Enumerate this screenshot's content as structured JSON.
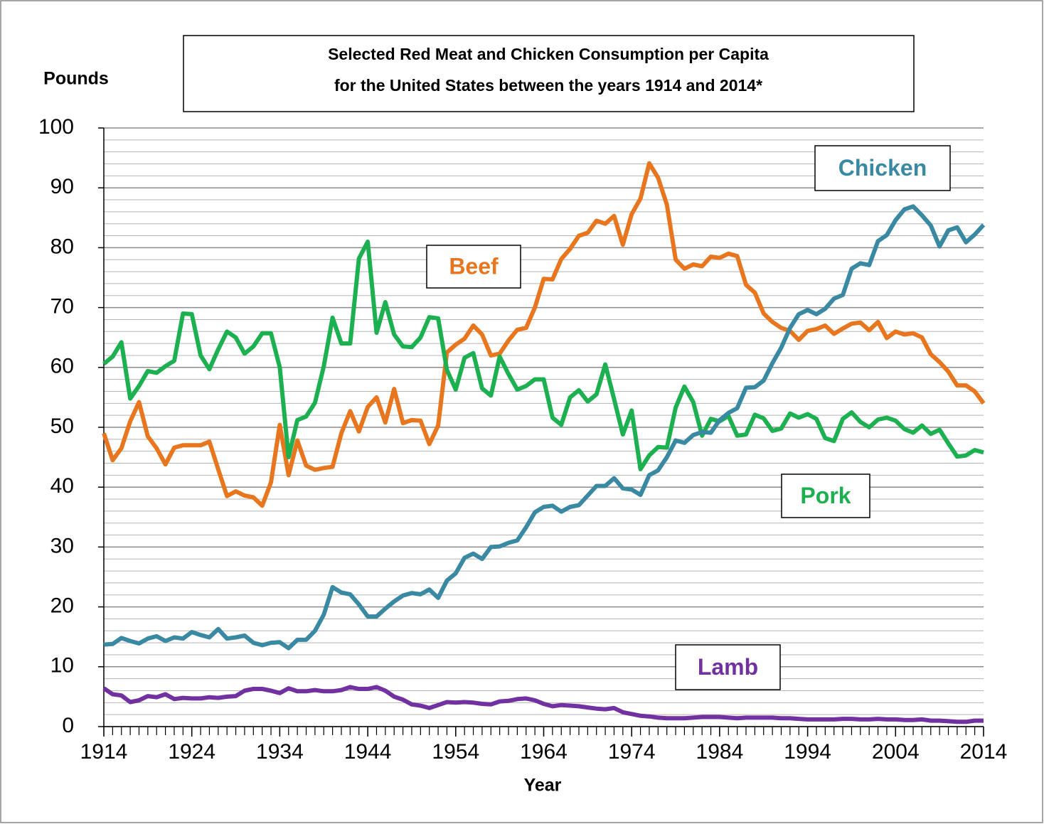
{
  "chart_data": {
    "type": "line",
    "title_lines": [
      "Selected Red Meat and Chicken Consumption per Capita",
      "for the United States between the years 1914 and 2014*"
    ],
    "ylabel": "Pounds",
    "xlabel": "Year",
    "x": [
      1914,
      1915,
      1916,
      1917,
      1918,
      1919,
      1920,
      1921,
      1922,
      1923,
      1924,
      1925,
      1926,
      1927,
      1928,
      1929,
      1930,
      1931,
      1932,
      1933,
      1934,
      1935,
      1936,
      1937,
      1938,
      1939,
      1940,
      1941,
      1942,
      1943,
      1944,
      1945,
      1946,
      1947,
      1948,
      1949,
      1950,
      1951,
      1952,
      1953,
      1954,
      1955,
      1956,
      1957,
      1958,
      1959,
      1960,
      1961,
      1962,
      1963,
      1964,
      1965,
      1966,
      1967,
      1968,
      1969,
      1970,
      1971,
      1972,
      1973,
      1974,
      1975,
      1976,
      1977,
      1978,
      1979,
      1980,
      1981,
      1982,
      1983,
      1984,
      1985,
      1986,
      1987,
      1988,
      1989,
      1990,
      1991,
      1992,
      1993,
      1994,
      1995,
      1996,
      1997,
      1998,
      1999,
      2000,
      2001,
      2002,
      2003,
      2004,
      2005,
      2006,
      2007,
      2008,
      2009,
      2010,
      2011,
      2012,
      2013,
      2014
    ],
    "series": [
      {
        "name": "Beef",
        "color": "#e8761e",
        "values": [
          49,
          44.5,
          46.5,
          51,
          54.2,
          48.5,
          46.5,
          43.8,
          46.6,
          47,
          47,
          47,
          47.6,
          43,
          38.5,
          39.3,
          38.6,
          38.3,
          36.9,
          40.8,
          50.4,
          42,
          47.8,
          43.6,
          42.9,
          43.2,
          43.4,
          49,
          52.7,
          49.3,
          53.4,
          55,
          50.8,
          56.4,
          50.7,
          51.2,
          51.1,
          47.2,
          50.3,
          62.5,
          63.8,
          64.8,
          67,
          65.5,
          62,
          62.3,
          64.5,
          66.3,
          66.6,
          70,
          74.8,
          74.7,
          78.1,
          79.8,
          82,
          82.5,
          84.5,
          84,
          85.3,
          80.5,
          85.6,
          88.2,
          94.1,
          91.7,
          87.2,
          78,
          76.5,
          77.2,
          76.9,
          78.5,
          78.3,
          79,
          78.6,
          73.8,
          72.5,
          69,
          67.6,
          66.6,
          66.1,
          64.6,
          66.1,
          66.4,
          67,
          65.6,
          66.5,
          67.3,
          67.5,
          66.2,
          67.6,
          64.9,
          66,
          65.5,
          65.7,
          65,
          62.2,
          60.9,
          59.3,
          57,
          57,
          56,
          54
        ]
      },
      {
        "name": "Pork",
        "color": "#1cb050",
        "values": [
          60.6,
          61.8,
          64.2,
          54.8,
          56.9,
          59.4,
          59.1,
          60.2,
          61.1,
          69,
          68.9,
          62,
          59.7,
          63,
          66,
          65,
          62.3,
          63.5,
          65.7,
          65.7,
          60,
          45,
          51.2,
          51.8,
          54.1,
          60.2,
          68.3,
          64,
          64,
          78.2,
          81,
          65.8,
          70.9,
          65.5,
          63.5,
          63.4,
          65,
          68.4,
          68.2,
          59.6,
          56.3,
          61.6,
          62.4,
          56.5,
          55.3,
          61.8,
          58.9,
          56.3,
          56.9,
          58,
          58,
          51.6,
          50.4,
          55,
          56.2,
          54.3,
          55.5,
          60.5,
          54.7,
          48.8,
          52.8,
          43,
          45.3,
          46.7,
          46.6,
          53.3,
          56.8,
          54.2,
          48.6,
          51.4,
          51,
          51.9,
          48.6,
          48.8,
          52.1,
          51.5,
          49.4,
          49.8,
          52.3,
          51.6,
          52.2,
          51.4,
          48.2,
          47.7,
          51.4,
          52.5,
          50.9,
          50,
          51.3,
          51.6,
          51.1,
          49.7,
          49.1,
          50.3,
          48.9,
          49.6,
          47.3,
          45.1,
          45.3,
          46.2,
          45.8
        ]
      },
      {
        "name": "Chicken",
        "color": "#3a89a3",
        "values": [
          13.7,
          13.8,
          14.8,
          14.3,
          13.9,
          14.7,
          15.1,
          14.3,
          14.9,
          14.7,
          15.8,
          15.3,
          14.9,
          16.3,
          14.7,
          14.9,
          15.2,
          14,
          13.6,
          14,
          14.1,
          13.1,
          14.5,
          14.5,
          16,
          18.7,
          23.3,
          22.4,
          22.1,
          20.4,
          18.4,
          18.4,
          19.7,
          20.9,
          21.9,
          22.3,
          22.1,
          22.9,
          21.5,
          24.4,
          25.6,
          28.2,
          28.9,
          28,
          30,
          30.1,
          30.7,
          31.1,
          33.3,
          35.8,
          36.7,
          36.9,
          35.9,
          36.7,
          37,
          38.6,
          40.2,
          40.2,
          41.5,
          39.8,
          39.6,
          38.7,
          42,
          42.8,
          45,
          47.8,
          47.4,
          48.7,
          49.2,
          49.1,
          51.2,
          52.4,
          53.2,
          56.6,
          56.7,
          57.8,
          60.7,
          63.3,
          66.6,
          68.9,
          69.6,
          68.9,
          69.8,
          71.5,
          72.1,
          76.5,
          77.4,
          77.1,
          81.1,
          82.1,
          84.6,
          86.4,
          86.9,
          85.4,
          83.7,
          80.2,
          82.9,
          83.4,
          80.9,
          82.2,
          83.8
        ]
      },
      {
        "name": "Lamb",
        "color": "#7231a0",
        "values": [
          6.4,
          5.4,
          5.2,
          4.1,
          4.4,
          5.1,
          4.9,
          5.4,
          4.6,
          4.8,
          4.7,
          4.7,
          4.9,
          4.8,
          5,
          5.1,
          6,
          6.3,
          6.3,
          6,
          5.6,
          6.4,
          5.9,
          5.9,
          6.1,
          5.9,
          5.9,
          6.1,
          6.6,
          6.3,
          6.3,
          6.6,
          6,
          5,
          4.5,
          3.7,
          3.5,
          3.1,
          3.6,
          4.1,
          4,
          4.1,
          4,
          3.8,
          3.7,
          4.2,
          4.3,
          4.6,
          4.7,
          4.4,
          3.8,
          3.4,
          3.6,
          3.5,
          3.4,
          3.2,
          3,
          2.9,
          3.1,
          2.4,
          2.1,
          1.8,
          1.7,
          1.5,
          1.4,
          1.4,
          1.4,
          1.5,
          1.6,
          1.6,
          1.6,
          1.5,
          1.4,
          1.5,
          1.5,
          1.5,
          1.5,
          1.4,
          1.4,
          1.3,
          1.2,
          1.2,
          1.2,
          1.2,
          1.3,
          1.3,
          1.2,
          1.2,
          1.3,
          1.2,
          1.2,
          1.1,
          1.1,
          1.2,
          1,
          1,
          0.9,
          0.8,
          0.8,
          1,
          1
        ]
      }
    ],
    "xlim": [
      1914,
      2014
    ],
    "xticks": [
      1914,
      1924,
      1934,
      1944,
      1954,
      1964,
      1974,
      1984,
      1994,
      2004,
      2014
    ],
    "ylim": [
      0,
      100
    ],
    "yticks": [
      0,
      10,
      20,
      30,
      40,
      50,
      60,
      70,
      80,
      90,
      100
    ],
    "minor_yticks": [
      2,
      4,
      6,
      8,
      12,
      14,
      16,
      18,
      22,
      24,
      26,
      28,
      32,
      34,
      36,
      38,
      42,
      44,
      46,
      48,
      52,
      54,
      56,
      58,
      62,
      64,
      66,
      68,
      72,
      74,
      76,
      78,
      82,
      84,
      86,
      88,
      92,
      94,
      96,
      98
    ],
    "grid": true
  }
}
